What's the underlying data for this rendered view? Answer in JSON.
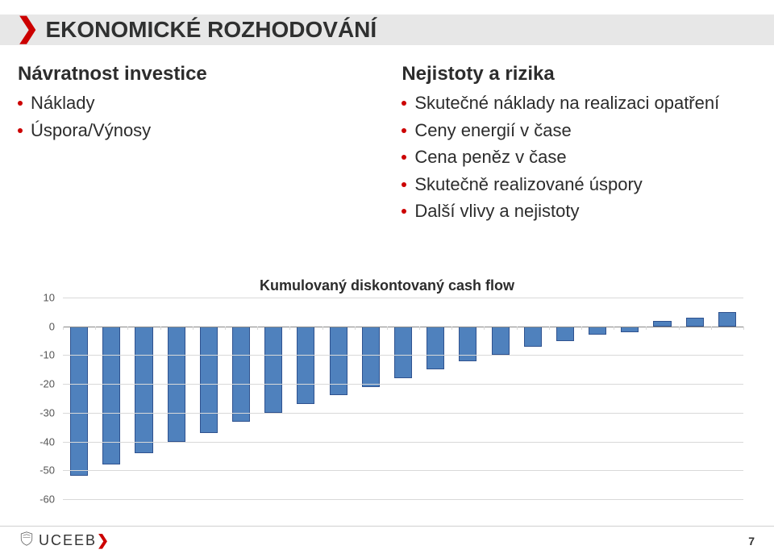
{
  "title": "EKONOMICKÉ ROZHODOVÁNÍ",
  "left": {
    "heading": "Návratnost investice",
    "items": [
      "Náklady",
      "Úspora/Výnosy"
    ]
  },
  "right": {
    "heading": "Nejistoty a rizika",
    "items": [
      "Skutečné náklady na realizaci opatření",
      "Ceny energií v čase",
      "Cena peněz v čase",
      "Skutečně realizované úspory",
      "Další vlivy a nejistoty"
    ]
  },
  "chart": {
    "type": "bar",
    "title": "Kumulovaný diskontovaný cash flow",
    "ylim": [
      -60,
      10
    ],
    "ytick_step": 10,
    "yticks": [
      10,
      0,
      -10,
      -20,
      -30,
      -40,
      -50,
      -60
    ],
    "values": [
      -52,
      -48,
      -44,
      -40,
      -37,
      -33,
      -30,
      -27,
      -24,
      -21,
      -18,
      -15,
      -12,
      -10,
      -7,
      -5,
      -3,
      -2,
      2,
      3,
      5
    ],
    "bar_color": "#4f81bd",
    "bar_border": "#2f528f",
    "grid_color": "#d9d9d9",
    "baseline_color": "#888888",
    "background_color": "#ffffff",
    "title_fontsize": 18,
    "axis_label_fontsize": 13,
    "bar_width_ratio": 0.55
  },
  "footer": {
    "logo_text": "UCEEB",
    "page": "7"
  },
  "colors": {
    "accent": "#cc0000",
    "band_bg": "#e7e7e7",
    "title_text": "#2f3030",
    "body_text": "#2c2c2c"
  }
}
